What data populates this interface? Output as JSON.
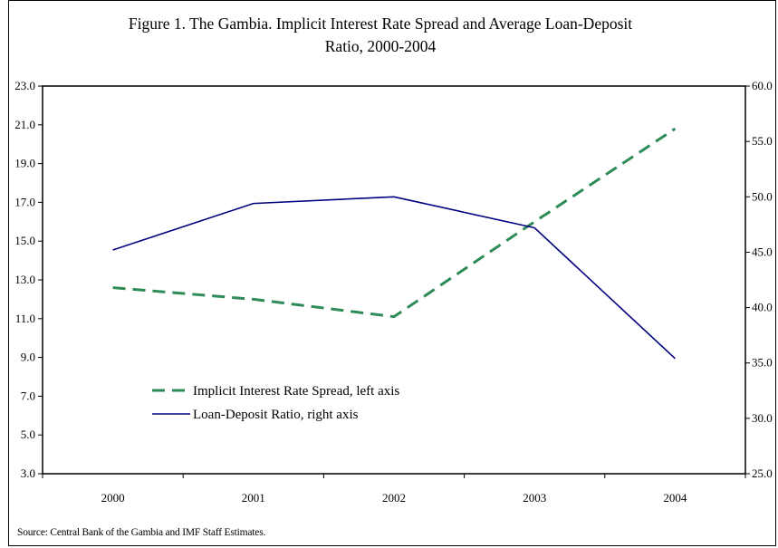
{
  "chart_data": {
    "type": "line",
    "title": "Figure 1.  The Gambia.  Implicit Interest Rate Spread and Average Loan-Deposit Ratio, 2000-2004",
    "title_lines": [
      "Figure 1.  The Gambia.  Implicit Interest Rate Spread and Average Loan-Deposit",
      "Ratio, 2000-2004"
    ],
    "categories": [
      "2000",
      "2001",
      "2002",
      "2003",
      "2004"
    ],
    "y_left": {
      "min": 3.0,
      "max": 23.0,
      "ticks": [
        "3.0",
        "5.0",
        "7.0",
        "9.0",
        "11.0",
        "13.0",
        "15.0",
        "17.0",
        "19.0",
        "21.0",
        "23.0"
      ]
    },
    "y_right": {
      "min": 25.0,
      "max": 60.0,
      "ticks": [
        "25.0",
        "30.0",
        "35.0",
        "40.0",
        "45.0",
        "50.0",
        "55.0",
        "60.0"
      ]
    },
    "series": [
      {
        "name": "Implicit Interest Rate Spread, left axis",
        "axis": "left",
        "values": [
          12.6,
          12.0,
          11.1,
          16.0,
          20.8
        ],
        "color": "#2e8b57",
        "style": "dashed"
      },
      {
        "name": "Loan-Deposit Ratio, right axis",
        "axis": "right",
        "values": [
          45.2,
          49.4,
          50.0,
          47.2,
          35.4
        ],
        "color": "#000080",
        "style": "solid"
      }
    ],
    "legend_position": "lower-left",
    "grid": false
  },
  "source": "Source: Central Bank of the Gambia and IMF Staff Estimates."
}
